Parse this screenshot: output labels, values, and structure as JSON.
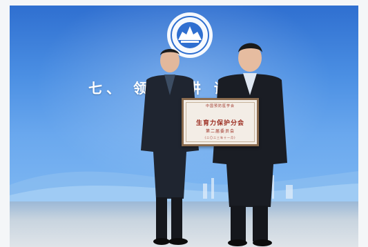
{
  "photo": {
    "banner_text": "七、 领 导 讲 话 授 匾",
    "plaque": {
      "org_line": "中国预防医学会",
      "title_line": "生育力保护分会",
      "subtitle_line": "第二届委员会",
      "date_line": "(二〇二三年十一月)"
    },
    "logo": {
      "icon": "society-emblem-icon",
      "color": "#ffffff"
    },
    "colors": {
      "backdrop": "#4b8fe3",
      "plaque_text": "#9a2a1e",
      "plaque_frame": "#8a6b4e"
    }
  }
}
